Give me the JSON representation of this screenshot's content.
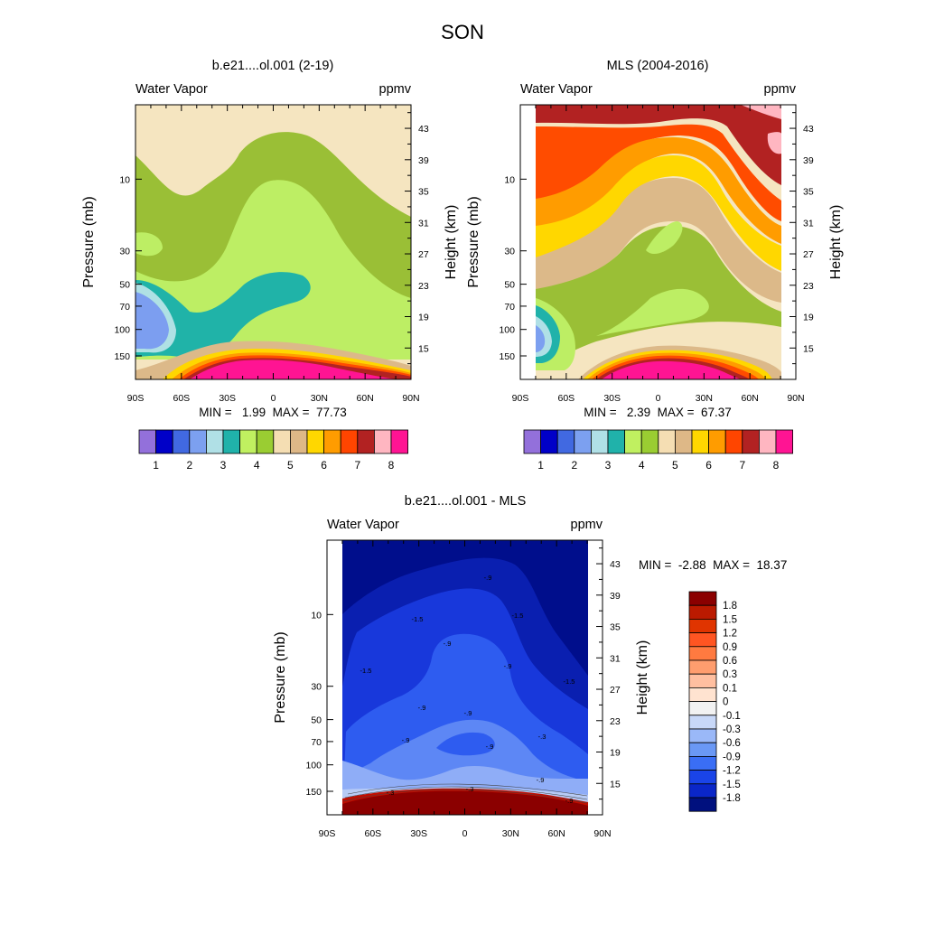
{
  "figure": {
    "title": "SON"
  },
  "chart_data": [
    {
      "type": "heatmap",
      "panel": "model",
      "title": "b.e21....ol.001 (2-19)",
      "left_label": "Water Vapor",
      "right_label": "ppmv",
      "ylabel": "Pressure (mb)",
      "ylabel_right": "Height (km)",
      "x_ticks": [
        "90S",
        "60S",
        "30S",
        "0",
        "30N",
        "60N",
        "90N"
      ],
      "x_values": [
        -90,
        -60,
        -30,
        0,
        30,
        60,
        90
      ],
      "y_ticks": [
        "10",
        "30",
        "50",
        "70",
        "100",
        "150"
      ],
      "y_values": [
        10,
        30,
        50,
        70,
        100,
        150
      ],
      "height_ticks": [
        "43",
        "39",
        "35",
        "31",
        "27",
        "23",
        "19",
        "15"
      ],
      "height_values": [
        43,
        39,
        35,
        31,
        27,
        23,
        19,
        15
      ],
      "min_max_text": "MIN =   1.99  MAX =  77.73",
      "min": 1.99,
      "max": 77.73,
      "background_color": "#f5e5c0",
      "regions": [
        {
          "color": "#9abf36",
          "approx_value": 4.25
        },
        {
          "color": "#bdee64",
          "approx_value": 3.75
        },
        {
          "color": "#20b3a8",
          "approx_value": 3.25
        },
        {
          "color": "#afe1e4",
          "approx_value": 2.75
        },
        {
          "color": "#7c9ef0",
          "approx_value": 2.25
        },
        {
          "color": "#dcb989",
          "approx_value": 5.25
        },
        {
          "color": "#ffd700",
          "approx_value": 5.75
        },
        {
          "color": "#ff9c00",
          "approx_value": 6.25
        },
        {
          "color": "#ff4c00",
          "approx_value": 6.75
        },
        {
          "color": "#b22222",
          "approx_value": 7.25
        },
        {
          "color": "#ff1493",
          "approx_value": 8.25
        }
      ]
    },
    {
      "type": "heatmap",
      "panel": "obs",
      "title": "MLS (2004-2016)",
      "left_label": "Water Vapor",
      "right_label": "ppmv",
      "ylabel": "Pressure (mb)",
      "ylabel_right": "Height (km)",
      "x_ticks": [
        "90S",
        "60S",
        "30S",
        "0",
        "30N",
        "60N",
        "90N"
      ],
      "x_values": [
        -90,
        -60,
        -30,
        0,
        30,
        60,
        90
      ],
      "y_ticks": [
        "10",
        "30",
        "50",
        "70",
        "100",
        "150"
      ],
      "y_values": [
        10,
        30,
        50,
        70,
        100,
        150
      ],
      "height_ticks": [
        "43",
        "39",
        "35",
        "31",
        "27",
        "23",
        "19",
        "15"
      ],
      "height_values": [
        43,
        39,
        35,
        31,
        27,
        23,
        19,
        15
      ],
      "min_max_text": "MIN =   2.39  MAX =  67.37",
      "min": 2.39,
      "max": 67.37,
      "background_color": "#f5e5c0",
      "regions": [
        {
          "color": "#b22222",
          "approx_value": 7.25
        },
        {
          "color": "#ff4c00",
          "approx_value": 6.75
        },
        {
          "color": "#ff9c00",
          "approx_value": 6.25
        },
        {
          "color": "#ffd700",
          "approx_value": 5.75
        },
        {
          "color": "#dcb989",
          "approx_value": 5.25
        },
        {
          "color": "#9abf36",
          "approx_value": 4.25
        },
        {
          "color": "#bdee64",
          "approx_value": 3.75
        },
        {
          "color": "#ffb6c1",
          "approx_value": 7.75
        },
        {
          "color": "#ff1493",
          "approx_value": 8.25
        }
      ]
    },
    {
      "type": "heatmap",
      "panel": "difference",
      "title": "b.e21....ol.001 - MLS",
      "left_label": "Water Vapor",
      "right_label": "ppmv",
      "ylabel": "Pressure (mb)",
      "ylabel_right": "Height (km)",
      "x_ticks": [
        "90S",
        "60S",
        "30S",
        "0",
        "30N",
        "60N",
        "90N"
      ],
      "x_values": [
        -90,
        -60,
        -30,
        0,
        30,
        60,
        90
      ],
      "y_ticks": [
        "10",
        "30",
        "50",
        "70",
        "100",
        "150"
      ],
      "y_values": [
        10,
        30,
        50,
        70,
        100,
        150
      ],
      "height_ticks": [
        "43",
        "39",
        "35",
        "31",
        "27",
        "23",
        "19",
        "15"
      ],
      "height_values": [
        43,
        39,
        35,
        31,
        27,
        23,
        19,
        15
      ],
      "min_max_text": "MIN =  -2.88  MAX =  18.37",
      "min": -2.88,
      "max": 18.37,
      "contour_labels": [
        "-.9",
        "-1.5",
        "-1.5",
        "-.9",
        "-1.5",
        "-.9",
        "-1.5",
        "-.9",
        "-.9",
        "-.9",
        "-.3",
        "-.9",
        "-.9",
        "-.3",
        "-.3",
        "-.9"
      ],
      "background_color": "#000e8c",
      "regions": [
        {
          "color": "#0a1fb0",
          "approx_value": -1.65
        },
        {
          "color": "#1838db",
          "approx_value": -1.35
        },
        {
          "color": "#2e5cf0",
          "approx_value": -1.05
        },
        {
          "color": "#5d87f5",
          "approx_value": -0.75
        },
        {
          "color": "#8fadf7",
          "approx_value": -0.45
        },
        {
          "color": "#b7cbf6",
          "approx_value": -0.2
        },
        {
          "color": "#c00d00",
          "approx_value": 1.65
        },
        {
          "color": "#8b0000",
          "approx_value": 1.95
        }
      ]
    }
  ],
  "legends": {
    "top": {
      "labels": [
        "1",
        "2",
        "3",
        "4",
        "5",
        "6",
        "7",
        "8"
      ],
      "colors": [
        "#9370db",
        "#0000c8",
        "#4169e1",
        "#7ca0f0",
        "#b0e0e6",
        "#20b2aa",
        "#c0f060",
        "#9acd32",
        "#f5deb3",
        "#deb887",
        "#ffd700",
        "#ff9c00",
        "#ff4500",
        "#b22222",
        "#ffb6c1",
        "#ff1493"
      ]
    },
    "diff": {
      "labels": [
        "1.8",
        "1.5",
        "1.2",
        "0.9",
        "0.6",
        "0.3",
        "0.1",
        "0",
        "-0.1",
        "-0.3",
        "-0.6",
        "-0.9",
        "-1.2",
        "-1.5",
        "-1.8"
      ],
      "colors": [
        "#8b0000",
        "#bb1a00",
        "#e03400",
        "#ff5522",
        "#ff7a40",
        "#ff9d6e",
        "#ffbfa0",
        "#ffe3d0",
        "#f2f2f2",
        "#c8d8f8",
        "#9ab8f8",
        "#6a98f5",
        "#3a6ef5",
        "#1a44e8",
        "#0a26c8",
        "#00107e"
      ]
    }
  }
}
